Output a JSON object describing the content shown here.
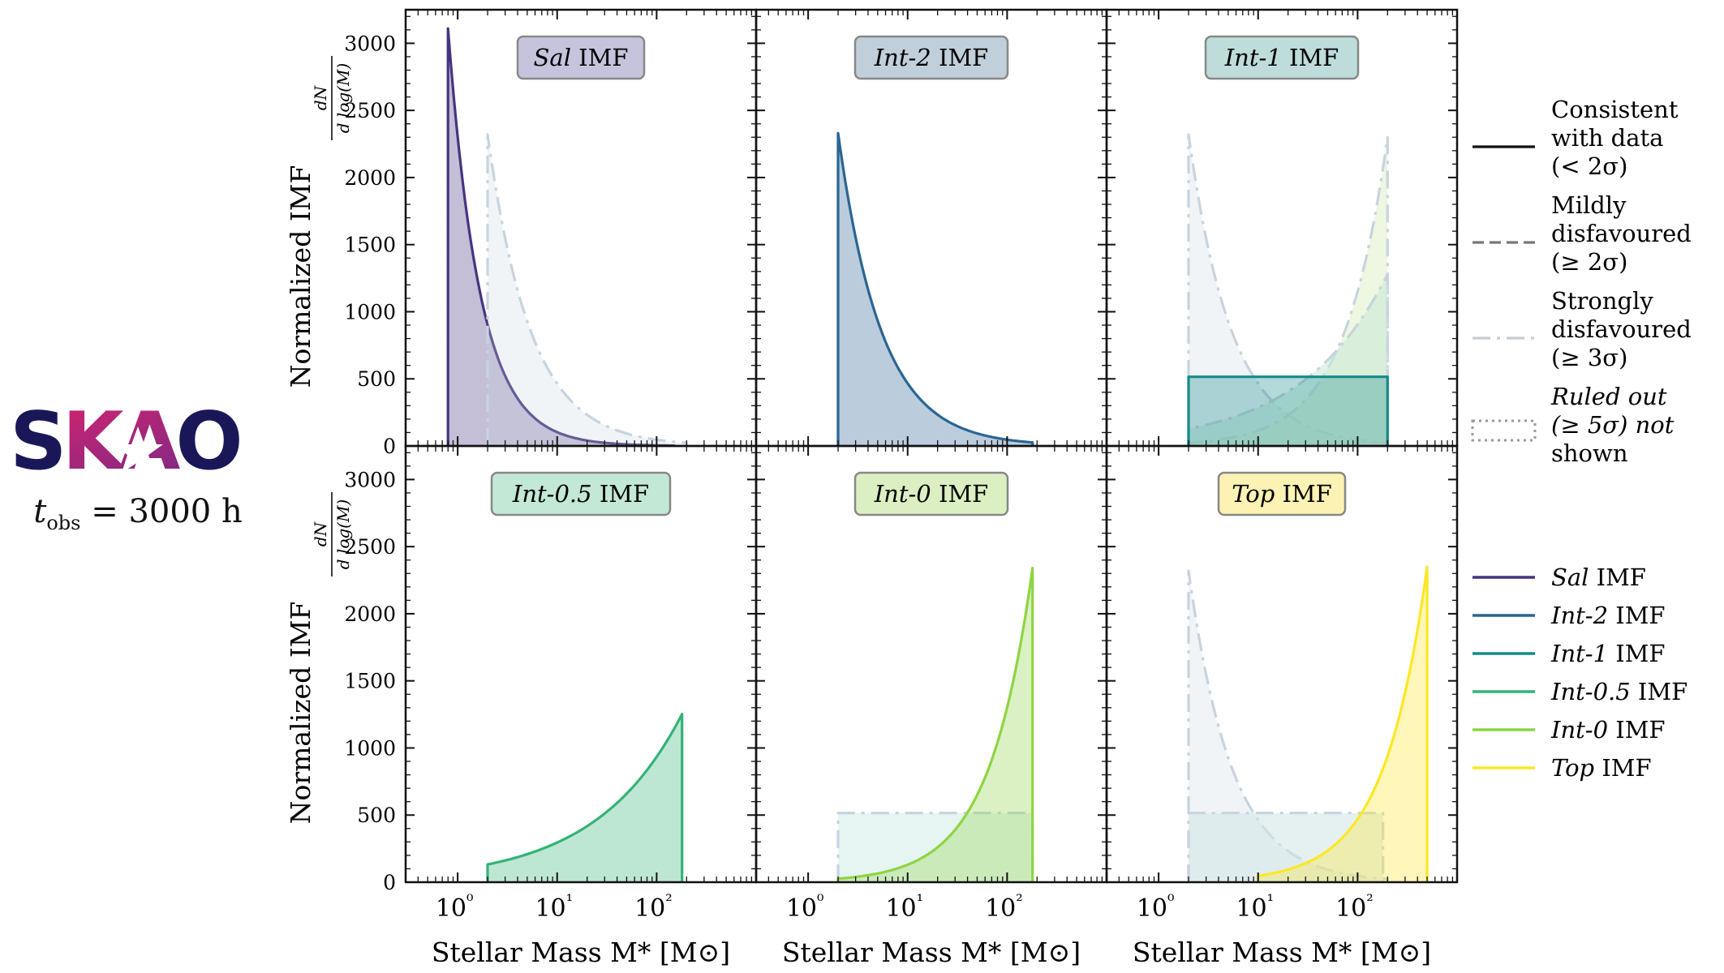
{
  "logo": {
    "text": "SKAO",
    "color_dark": "#1a1759",
    "color_grad_a": "#e0236b",
    "color_grad_b": "#6a2a8a"
  },
  "tobs": {
    "var": "t",
    "sub": "obs",
    "value": "3000",
    "unit": "h"
  },
  "axes": {
    "ylabel": "Normalized IMF",
    "ylabel_frac_num": "dN",
    "ylabel_frac_den": "d log(M)",
    "xlabel": "Stellar Mass M* [M⊙]",
    "xlim": [
      0.3,
      1000
    ],
    "ylim": [
      0,
      3250
    ],
    "yticks": [
      0,
      500,
      1000,
      1500,
      2000,
      2500,
      3000
    ],
    "xticks": [
      1,
      10,
      100
    ],
    "xtick_labels": [
      "10⁰",
      "10¹",
      "10²"
    ]
  },
  "colors": {
    "sal": "#463480",
    "int2": "#2b6592",
    "int1": "#178a8a",
    "int05": "#34b377",
    "int0": "#8ed443",
    "top": "#fde725",
    "strong": "#c7d4df",
    "label_box_sal": "#c6c4dc",
    "label_box_int2": "#c0cfda",
    "label_box_int1": "#bddcda",
    "label_box_int05": "#c3e8d6",
    "label_box_int0": "#dcefc3",
    "label_box_top": "#fbf2b3"
  },
  "chart_data": [
    {
      "type": "area",
      "panel": "top-left",
      "title_italic": "Sal",
      "title_rest": "IMF",
      "series": [
        {
          "name": "Sal IMF",
          "style": "solid",
          "color_key": "sal",
          "shape": "powerlaw",
          "m_min": 0.8,
          "m_max": 150,
          "y_min_mass_value": 3110,
          "alpha": -1.35
        },
        {
          "name": "Int-2 IMF",
          "style": "dashdot",
          "color_key": "strong",
          "shape": "powerlaw",
          "m_min": 2,
          "m_max": 200,
          "y_min_mass_value": 2320,
          "alpha": -1.0
        }
      ]
    },
    {
      "type": "area",
      "panel": "top-middle",
      "title_italic": "Int-2",
      "title_rest": "IMF",
      "series": [
        {
          "name": "Int-2 IMF",
          "style": "solid",
          "color_key": "int2",
          "shape": "powerlaw",
          "m_min": 2,
          "m_max": 180,
          "y_min_mass_value": 2330,
          "alpha": -1.0
        }
      ]
    },
    {
      "type": "area",
      "panel": "top-right",
      "title_italic": "Int-1",
      "title_rest": "IMF",
      "series": [
        {
          "name": "Int-2 IMF",
          "style": "dashdot",
          "color_key": "strong",
          "shape": "powerlaw",
          "m_min": 2,
          "m_max": 200,
          "y_min_mass_value": 2320,
          "alpha": -1.0
        },
        {
          "name": "Int-0 IMF",
          "style": "dashdot",
          "color_key": "strong",
          "shape": "powerlaw",
          "m_min": 2,
          "m_max": 200,
          "y_min_mass_value": 23,
          "alpha": 1.0,
          "tint": "#dff0c8"
        },
        {
          "name": "Int-0.5 IMF",
          "style": "dashdot",
          "color_key": "strong",
          "shape": "powerlaw",
          "m_min": 2,
          "m_max": 200,
          "y_min_mass_value": 128,
          "alpha": 0.5,
          "tint": "#c9ead9"
        },
        {
          "name": "Int-1 IMF",
          "style": "solid",
          "color_key": "int1",
          "shape": "flat",
          "m_min": 2,
          "m_max": 200,
          "value": 515
        }
      ]
    },
    {
      "type": "area",
      "panel": "bottom-left",
      "title_italic": "Int-0.5",
      "title_rest": "IMF",
      "series": [
        {
          "name": "Int-0.5 IMF",
          "style": "solid",
          "color_key": "int05",
          "shape": "powerlaw",
          "m_min": 2,
          "m_max": 180,
          "y_min_mass_value": 132,
          "alpha": 0.5
        }
      ]
    },
    {
      "type": "area",
      "panel": "bottom-middle",
      "title_italic": "Int-0",
      "title_rest": "IMF",
      "series": [
        {
          "name": "Int-1 IMF",
          "style": "dashdot",
          "color_key": "strong",
          "shape": "flat",
          "m_min": 2,
          "m_max": 180,
          "value": 515,
          "tint": "#d4ece8"
        },
        {
          "name": "Int-0 IMF",
          "style": "solid",
          "color_key": "int0",
          "shape": "powerlaw",
          "m_min": 2,
          "m_max": 180,
          "y_min_mass_value": 26,
          "alpha": 1.0
        }
      ]
    },
    {
      "type": "area",
      "panel": "bottom-right",
      "title_italic": "Top",
      "title_rest": "IMF",
      "series": [
        {
          "name": "Int-2 IMF",
          "style": "dashdot",
          "color_key": "strong",
          "shape": "powerlaw",
          "m_min": 2,
          "m_max": 200,
          "y_min_mass_value": 2320,
          "alpha": -1.0
        },
        {
          "name": "Int-1 IMF",
          "style": "dashdot",
          "color_key": "strong",
          "shape": "flat",
          "m_min": 2,
          "m_max": 180,
          "value": 515,
          "tint": "#cfe5e6"
        },
        {
          "name": "Top IMF",
          "style": "solid",
          "color_key": "top",
          "shape": "powerlaw",
          "m_min": 10,
          "m_max": 500,
          "y_min_mass_value": 47,
          "alpha": 1.0
        }
      ]
    }
  ],
  "legend_styles": [
    {
      "label_lines": [
        "Consistent",
        "with data",
        "(< 2σ)"
      ],
      "style": "solid",
      "color": "#111111"
    },
    {
      "label_lines": [
        "Mildly",
        "disfavoured",
        "(≥ 2σ)"
      ],
      "style": "dashed",
      "color": "#777777"
    },
    {
      "label_lines": [
        "Strongly",
        "disfavoured",
        "(≥ 3σ)"
      ],
      "style": "dashdot",
      "color": "#c7ccd2"
    },
    {
      "label_lines": [
        "Ruled out",
        "(≥ 5σ) not",
        "shown"
      ],
      "style": "dotted",
      "color": "#9a9a9a",
      "italic": true
    }
  ],
  "legend_models": [
    {
      "label_italic": "Sal",
      "label_rest": "IMF",
      "color_key": "sal"
    },
    {
      "label_italic": "Int-2",
      "label_rest": "IMF",
      "color_key": "int2"
    },
    {
      "label_italic": "Int-1",
      "label_rest": "IMF",
      "color_key": "int1"
    },
    {
      "label_italic": "Int-0.5",
      "label_rest": "IMF",
      "color_key": "int05"
    },
    {
      "label_italic": "Int-0",
      "label_rest": "IMF",
      "color_key": "int0"
    },
    {
      "label_italic": "Top",
      "label_rest": "IMF",
      "color_key": "top"
    }
  ]
}
